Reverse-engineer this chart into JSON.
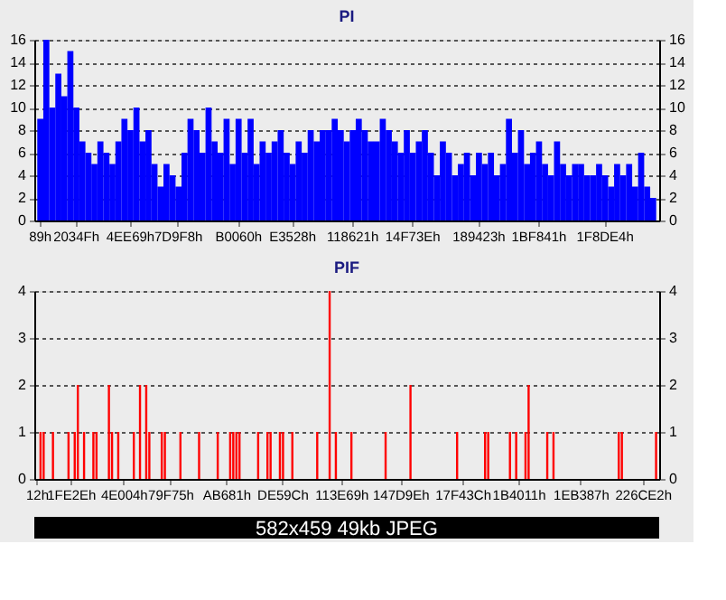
{
  "chart_data": [
    {
      "type": "bar",
      "title": "PI",
      "grid": "y",
      "categories": [
        "89h",
        null,
        null,
        null,
        null,
        null,
        "2034Fh",
        null,
        null,
        null,
        null,
        null,
        null,
        null,
        null,
        "4EE69h",
        null,
        null,
        null,
        null,
        null,
        null,
        null,
        "7D9F8h",
        null,
        null,
        null,
        null,
        null,
        null,
        null,
        null,
        null,
        "B0060h",
        null,
        null,
        null,
        null,
        null,
        null,
        null,
        null,
        "E3528h",
        null,
        null,
        null,
        null,
        null,
        null,
        null,
        null,
        null,
        "118621h",
        null,
        null,
        null,
        null,
        null,
        null,
        null,
        null,
        null,
        "14F73Eh",
        null,
        null,
        null,
        null,
        null,
        null,
        null,
        null,
        null,
        null,
        "189423h",
        null,
        null,
        null,
        null,
        null,
        null,
        null,
        null,
        null,
        "1BF841h",
        null,
        null,
        null,
        null,
        null,
        null,
        null,
        null,
        null,
        null,
        "1F8DE4h",
        null,
        null,
        null,
        null,
        null,
        null,
        null,
        null
      ],
      "series": [
        {
          "color": "#0000ff",
          "values": [
            9,
            16,
            10,
            13,
            11,
            15,
            10,
            7,
            6,
            5,
            7,
            6,
            5,
            7,
            9,
            8,
            10,
            7,
            8,
            5,
            3,
            5,
            4,
            3,
            6,
            9,
            8,
            6,
            10,
            7,
            6,
            9,
            5,
            9,
            6,
            9,
            5,
            7,
            6,
            7,
            8,
            6,
            5,
            7,
            6,
            8,
            7,
            8,
            8,
            9,
            8,
            7,
            8,
            9,
            8,
            7,
            7,
            9,
            8,
            7,
            6,
            8,
            6,
            7,
            8,
            6,
            4,
            7,
            6,
            4,
            5,
            6,
            4,
            6,
            5,
            6,
            4,
            5,
            9,
            6,
            8,
            5,
            6,
            7,
            5,
            4,
            7,
            5,
            4,
            5,
            5,
            4,
            4,
            5,
            4,
            3,
            5,
            4,
            5,
            3,
            6,
            3,
            2
          ]
        }
      ],
      "ylim": [
        0,
        16
      ],
      "yticks": [
        0,
        2,
        4,
        6,
        8,
        10,
        12,
        14,
        16
      ],
      "y2lim": [
        0,
        16
      ],
      "y2ticks": [
        0,
        2,
        4,
        6,
        8,
        10,
        12,
        14,
        16
      ]
    },
    {
      "type": "bar",
      "title": "PIF",
      "grid": "y",
      "categories": [
        "12h",
        null,
        null,
        null,
        null,
        null,
        null,
        null,
        null,
        null,
        null,
        "1FE2Eh",
        null,
        null,
        null,
        null,
        null,
        null,
        null,
        null,
        null,
        null,
        null,
        null,
        null,
        null,
        null,
        null,
        "4E004h",
        null,
        null,
        null,
        null,
        null,
        null,
        null,
        null,
        null,
        null,
        null,
        null,
        null,
        null,
        "79F75h",
        null,
        null,
        null,
        null,
        null,
        null,
        null,
        null,
        null,
        null,
        null,
        null,
        null,
        null,
        null,
        null,
        null,
        "AB681h",
        null,
        null,
        null,
        null,
        null,
        null,
        null,
        null,
        null,
        null,
        null,
        null,
        null,
        null,
        null,
        null,
        null,
        "DE59Ch",
        null,
        null,
        null,
        null,
        null,
        null,
        null,
        null,
        null,
        null,
        null,
        null,
        null,
        null,
        null,
        null,
        null,
        null,
        "113E69h",
        null,
        null,
        null,
        null,
        null,
        null,
        null,
        null,
        null,
        null,
        null,
        null,
        null,
        null,
        null,
        null,
        null,
        null,
        "147D9Eh",
        null,
        null,
        null,
        null,
        null,
        null,
        null,
        null,
        null,
        null,
        null,
        null,
        null,
        null,
        null,
        null,
        null,
        null,
        null,
        "17F43Ch",
        null,
        null,
        null,
        null,
        null,
        null,
        null,
        null,
        null,
        null,
        null,
        null,
        null,
        null,
        null,
        null,
        null,
        "1B4011h",
        null,
        null,
        null,
        null,
        null,
        null,
        null,
        null,
        null,
        null,
        null,
        null,
        null,
        null,
        null,
        null,
        null,
        null,
        null,
        "1EB387h",
        null,
        null,
        null,
        null,
        null,
        null,
        null,
        null,
        null,
        null,
        null,
        null,
        null,
        null,
        null,
        null,
        null,
        null,
        null,
        "226CE2h",
        null,
        null,
        null,
        null
      ],
      "series": [
        {
          "color": "#ff0000",
          "values": [
            null,
            1,
            1,
            null,
            null,
            1,
            null,
            null,
            null,
            null,
            1,
            null,
            1,
            2,
            null,
            1,
            null,
            null,
            1,
            1,
            null,
            null,
            null,
            2,
            1,
            null,
            1,
            null,
            null,
            null,
            null,
            1,
            null,
            2,
            null,
            2,
            1,
            null,
            null,
            null,
            1,
            1,
            null,
            null,
            null,
            null,
            1,
            null,
            null,
            null,
            null,
            null,
            1,
            null,
            null,
            null,
            null,
            null,
            1,
            null,
            null,
            null,
            1,
            1,
            1,
            1,
            null,
            null,
            null,
            null,
            null,
            1,
            null,
            null,
            1,
            1,
            null,
            null,
            1,
            1,
            null,
            null,
            1,
            null,
            null,
            null,
            null,
            null,
            null,
            null,
            1,
            null,
            null,
            null,
            4,
            null,
            1,
            null,
            null,
            null,
            null,
            1,
            null,
            null,
            null,
            null,
            null,
            null,
            null,
            null,
            null,
            null,
            1,
            null,
            null,
            null,
            null,
            null,
            null,
            null,
            2,
            null,
            null,
            null,
            null,
            null,
            null,
            null,
            null,
            null,
            null,
            null,
            null,
            null,
            null,
            1,
            null,
            null,
            null,
            null,
            null,
            null,
            null,
            null,
            1,
            1,
            null,
            null,
            null,
            null,
            null,
            null,
            1,
            null,
            1,
            null,
            null,
            1,
            2,
            null,
            null,
            null,
            null,
            null,
            1,
            null,
            1,
            null,
            null,
            null,
            null,
            null,
            null,
            null,
            null,
            null,
            null,
            null,
            null,
            null,
            null,
            null,
            null,
            null,
            null,
            null,
            null,
            1,
            1,
            null,
            null,
            null,
            null,
            null,
            null,
            null,
            null,
            null,
            null,
            1
          ]
        }
      ],
      "ylim": [
        0,
        4
      ],
      "yticks": [
        0,
        1,
        2,
        3,
        4
      ],
      "y2lim": [
        0,
        4
      ],
      "y2ticks": [
        0,
        1,
        2,
        3,
        4
      ],
      "annotations": [
        "582x459 49kb JPEG"
      ]
    }
  ]
}
